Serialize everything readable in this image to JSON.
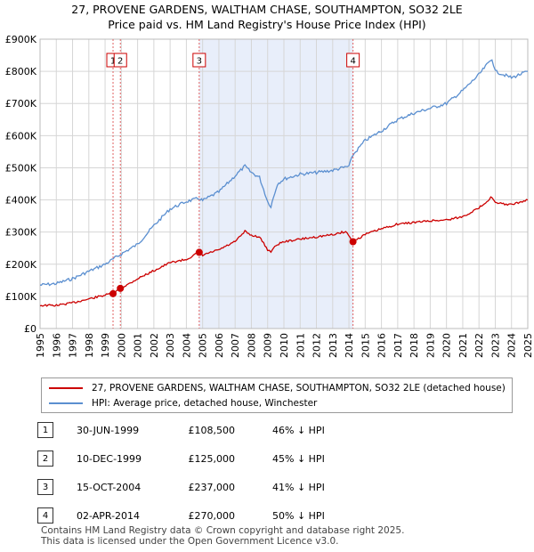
{
  "title_line1": "27, PROVENE GARDENS, WALTHAM CHASE, SOUTHAMPTON, SO32 2LE",
  "title_line2": "Price paid vs. HM Land Registry's House Price Index (HPI)",
  "colors": {
    "property": "#cc0000",
    "hpi": "#5b8fd0",
    "shade": "#e8eefa",
    "grid": "#d6d6d6"
  },
  "legend": {
    "property_label": "27, PROVENE GARDENS, WALTHAM CHASE, SOUTHAMPTON, SO32 2LE (detached house)",
    "hpi_label": "HPI: Average price, detached house, Winchester"
  },
  "sales": [
    {
      "num": "1",
      "date": "30-JUN-1999",
      "price": "£108,500",
      "hpi": "46% ↓ HPI"
    },
    {
      "num": "2",
      "date": "10-DEC-1999",
      "price": "£125,000",
      "hpi": "45% ↓ HPI"
    },
    {
      "num": "3",
      "date": "15-OCT-2004",
      "price": "£237,000",
      "hpi": "41% ↓ HPI"
    },
    {
      "num": "4",
      "date": "02-APR-2014",
      "price": "£270,000",
      "hpi": "50% ↓ HPI"
    }
  ],
  "footer_line1": "Contains HM Land Registry data © Crown copyright and database right 2025.",
  "footer_line2": "This data is licensed under the Open Government Licence v3.0.",
  "chart_data": {
    "type": "line",
    "xlim": [
      1995,
      2025
    ],
    "ylim": [
      0,
      900000
    ],
    "x_ticks": [
      "1995",
      "1996",
      "1997",
      "1998",
      "1999",
      "2000",
      "2001",
      "2002",
      "2003",
      "2004",
      "2005",
      "2006",
      "2007",
      "2008",
      "2009",
      "2010",
      "2011",
      "2012",
      "2013",
      "2014",
      "2015",
      "2016",
      "2017",
      "2018",
      "2019",
      "2020",
      "2021",
      "2022",
      "2023",
      "2024",
      "2025"
    ],
    "y_ticks": [
      {
        "value": 0,
        "label": "£0"
      },
      {
        "value": 100000,
        "label": "£100K"
      },
      {
        "value": 200000,
        "label": "£200K"
      },
      {
        "value": 300000,
        "label": "£300K"
      },
      {
        "value": 400000,
        "label": "£400K"
      },
      {
        "value": 500000,
        "label": "£500K"
      },
      {
        "value": 600000,
        "label": "£600K"
      },
      {
        "value": 700000,
        "label": "£700K"
      },
      {
        "value": 800000,
        "label": "£800K"
      },
      {
        "value": 900000,
        "label": "£900K"
      }
    ],
    "grid": true,
    "shaded_region": [
      2004.79,
      2014.25
    ],
    "series": [
      {
        "name": "27, PROVENE GARDENS, WALTHAM CHASE, SOUTHAMPTON, SO32 2LE (detached house)",
        "x": [
          1995,
          1996,
          1997,
          1998,
          1999,
          1999.5,
          1999.95,
          2000.5,
          2001,
          2002,
          2003,
          2004,
          2004.79,
          2005,
          2006,
          2007,
          2007.6,
          2008,
          2008.5,
          2009,
          2009.2,
          2009.6,
          2010,
          2011,
          2012,
          2013,
          2013.8,
          2014.25,
          2015,
          2016,
          2017,
          2018,
          2019,
          2020,
          2021,
          2022,
          2022.8,
          2023,
          2024,
          2025
        ],
        "y": [
          72000,
          72000,
          80000,
          92000,
          104000,
          108500,
          125000,
          140000,
          155000,
          180000,
          205000,
          215000,
          237000,
          228000,
          245000,
          270000,
          302000,
          290000,
          285000,
          245000,
          240000,
          262000,
          270000,
          278000,
          285000,
          292000,
          302000,
          270000,
          293000,
          310000,
          325000,
          330000,
          335000,
          338000,
          348000,
          375000,
          410000,
          390000,
          385000,
          400000
        ]
      },
      {
        "name": "HPI: Average price, detached house, Winchester",
        "x": [
          1995,
          1996,
          1997,
          1998,
          1999,
          2000,
          2001,
          2002,
          2003,
          2004,
          2004.79,
          2005,
          2006,
          2007,
          2007.6,
          2008,
          2008.5,
          2009,
          2009.2,
          2009.6,
          2010,
          2011,
          2012,
          2013,
          2014,
          2014.25,
          2015,
          2016,
          2017,
          2018,
          2019,
          2020,
          2021,
          2022,
          2022.8,
          2023,
          2024,
          2025
        ],
        "y": [
          135000,
          140000,
          155000,
          178000,
          200000,
          232000,
          262000,
          320000,
          372000,
          395000,
          405000,
          398000,
          425000,
          475000,
          505000,
          485000,
          470000,
          395000,
          380000,
          450000,
          465000,
          480000,
          485000,
          492000,
          505000,
          540000,
          585000,
          615000,
          650000,
          670000,
          685000,
          700000,
          740000,
          790000,
          840000,
          800000,
          780000,
          800000
        ]
      }
    ],
    "markers": [
      {
        "label": "1",
        "x": 1999.49,
        "y": 108500
      },
      {
        "label": "2",
        "x": 1999.94,
        "y": 125000
      },
      {
        "label": "3",
        "x": 2004.79,
        "y": 237000
      },
      {
        "label": "4",
        "x": 2014.25,
        "y": 270000
      }
    ]
  }
}
